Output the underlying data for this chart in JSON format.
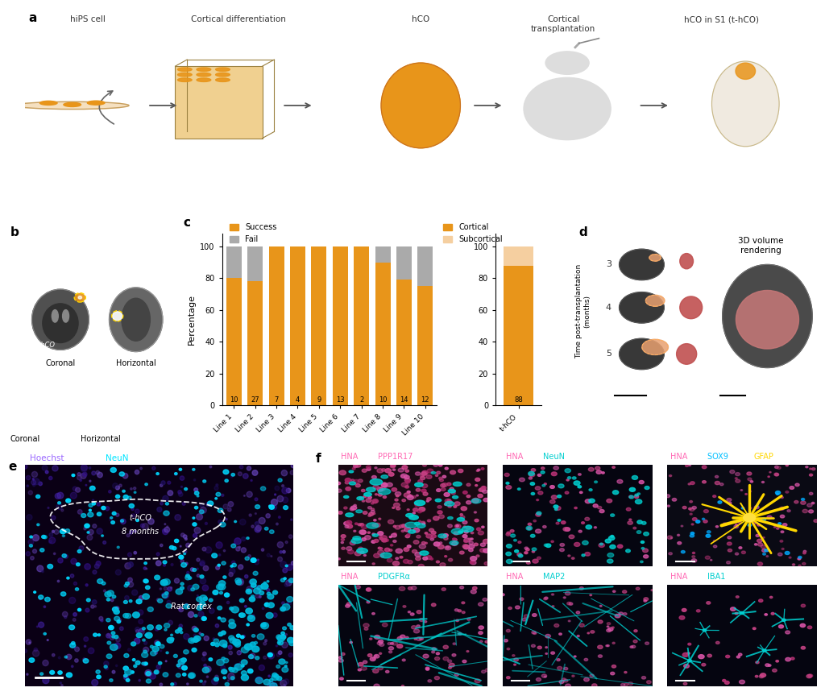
{
  "panel_c": {
    "lines": [
      "Line 1",
      "Line 2",
      "Line 3",
      "Line 4",
      "Line 5",
      "Line 6",
      "Line 7",
      "Line 8",
      "Line 9",
      "Line 10"
    ],
    "n_values": [
      10,
      27,
      7,
      4,
      9,
      13,
      2,
      10,
      14,
      12
    ],
    "success_pct": [
      80,
      78,
      100,
      100,
      100,
      100,
      100,
      90,
      79,
      75
    ],
    "fail_pct": [
      20,
      22,
      0,
      0,
      0,
      0,
      0,
      10,
      21,
      25
    ],
    "t_hco_cortical_pct": 88,
    "t_hco_subcortical_pct": 12,
    "t_hco_n": 88,
    "color_success": "#E8951A",
    "color_fail": "#AAAAAA",
    "color_cortical": "#E8951A",
    "color_subcortical": "#F5CFA0",
    "ylabel_left": "Percentage",
    "yticks": [
      0,
      20,
      40,
      60,
      80,
      100
    ]
  },
  "title_a": "hiPS cell",
  "title_a2": "Cortical differentiation",
  "title_a3": "hCO",
  "title_a4": "Cortical\ntransplantation",
  "title_a5": "hCO in S1 (t-hCO)",
  "label_b1": "Coronal",
  "label_b2": "Horizontal",
  "hoechst_color": "#9966FF",
  "neun_color_e": "#00E5FF",
  "hna_color": "#FF69B4",
  "sox9_color": "#00BFFF",
  "gfap_color": "#FFD700",
  "iba1_cyan_color": "#00CFCF",
  "fig_bg": "#FFFFFF",
  "panel_label_fontsize": 11,
  "d_label": "3D volume\nrendering",
  "d_months": [
    3,
    4,
    5
  ],
  "f_panels": [
    {
      "title_parts": [
        [
          "HNA ",
          "#FF69B4"
        ],
        [
          "PPP1R17",
          "#FF69B4"
        ]
      ],
      "bg": "#1A0A14",
      "type": "ppp1r17"
    },
    {
      "title_parts": [
        [
          "HNA ",
          "#FF69B4"
        ],
        [
          "NeuN",
          "#00CFCF"
        ]
      ],
      "bg": "#050510",
      "type": "neun"
    },
    {
      "title_parts": [
        [
          "HNA ",
          "#FF69B4"
        ],
        [
          "SOX9 ",
          "#00BFFF"
        ],
        [
          "GFAP",
          "#FFD700"
        ]
      ],
      "bg": "#0A0A14",
      "type": "sox9gfap"
    },
    {
      "title_parts": [
        [
          "HNA ",
          "#FF69B4"
        ],
        [
          "PDGFRα",
          "#00CFCF"
        ]
      ],
      "bg": "#050510",
      "type": "pdgfr"
    },
    {
      "title_parts": [
        [
          "HNA ",
          "#FF69B4"
        ],
        [
          "MAP2",
          "#00CFCF"
        ]
      ],
      "bg": "#050510",
      "type": "map2"
    },
    {
      "title_parts": [
        [
          "HNA ",
          "#FF69B4"
        ],
        [
          "IBA1",
          "#00CFCF"
        ]
      ],
      "bg": "#050510",
      "type": "iba1"
    }
  ]
}
